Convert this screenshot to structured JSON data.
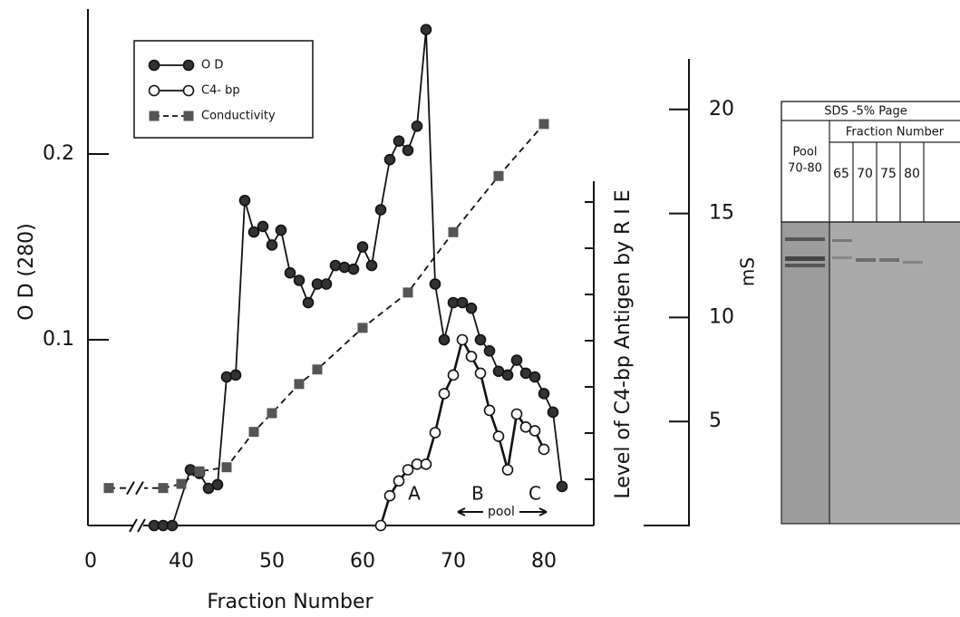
{
  "chart_data": {
    "type": "line",
    "xlabel": "Fraction Number",
    "ylabel": "O D (280)",
    "y2label": "mS",
    "y3label": "Level of C4-bp Antigen by R I E",
    "xlim": [
      0,
      85
    ],
    "xticks": [
      0,
      40,
      50,
      60,
      70,
      80
    ],
    "ylim": [
      0,
      0.28
    ],
    "yticks": [
      0.1,
      0.2
    ],
    "y2lim": [
      0,
      25
    ],
    "y2ticks": [
      5,
      10,
      15,
      20
    ],
    "legend": "upper left",
    "series": [
      {
        "name": "O D",
        "color": "#333333",
        "marker": "filled-circle",
        "dash": "solid",
        "x": [
          37,
          38,
          39,
          41,
          42,
          43,
          44,
          45,
          46,
          47,
          48,
          49,
          50,
          51,
          52,
          53,
          54,
          55,
          56,
          57,
          58,
          59,
          60,
          61,
          62,
          63,
          64,
          65,
          66,
          67,
          68,
          69,
          70,
          71,
          72,
          73,
          74,
          75,
          76,
          77,
          78,
          79,
          80,
          81,
          82
        ],
        "values": [
          0,
          0,
          0,
          0.03,
          0.028,
          0.02,
          0.022,
          0.08,
          0.081,
          0.175,
          0.158,
          0.161,
          0.151,
          0.159,
          0.136,
          0.132,
          0.12,
          0.13,
          0.13,
          0.14,
          0.139,
          0.138,
          0.15,
          0.14,
          0.17,
          0.197,
          0.207,
          0.202,
          0.215,
          0.267,
          0.13,
          0.1,
          0.12,
          0.12,
          0.117,
          0.1,
          0.094,
          0.083,
          0.081,
          0.089,
          0.082,
          0.08,
          0.071,
          0.061,
          0.021
        ]
      },
      {
        "name": "C4- bp",
        "color": "#111111",
        "marker": "open-circle",
        "dash": "solid",
        "x": [
          62,
          63,
          64,
          65,
          66,
          67,
          68,
          69,
          70,
          71,
          72,
          73,
          74,
          75,
          76,
          77,
          78,
          79,
          80
        ],
        "values": [
          0,
          0.016,
          0.024,
          0.03,
          0.033,
          0.033,
          0.05,
          0.071,
          0.081,
          0.1,
          0.091,
          0.082,
          0.062,
          0.048,
          0.03,
          0.06,
          0.053,
          0.051,
          0.041
        ]
      },
      {
        "name": "Conductivity",
        "color": "#555555",
        "marker": "square",
        "dash": "dashed",
        "axis": "y2",
        "x": [
          2,
          38,
          40,
          42,
          45,
          48,
          50,
          53,
          55,
          60,
          65,
          70,
          75,
          80
        ],
        "values": [
          1.8,
          1.8,
          2.0,
          2.6,
          2.8,
          4.5,
          5.4,
          6.8,
          7.5,
          9.5,
          11.2,
          14.1,
          16.8,
          19.3
        ]
      }
    ],
    "annotations": [
      "A",
      "B",
      "C",
      "pool"
    ]
  },
  "gel": {
    "title": "SDS -5% Page",
    "pool_label": [
      "Pool",
      "70-80"
    ],
    "column_header": "Fraction Number",
    "lanes": [
      "65",
      "70",
      "75",
      "80"
    ]
  }
}
